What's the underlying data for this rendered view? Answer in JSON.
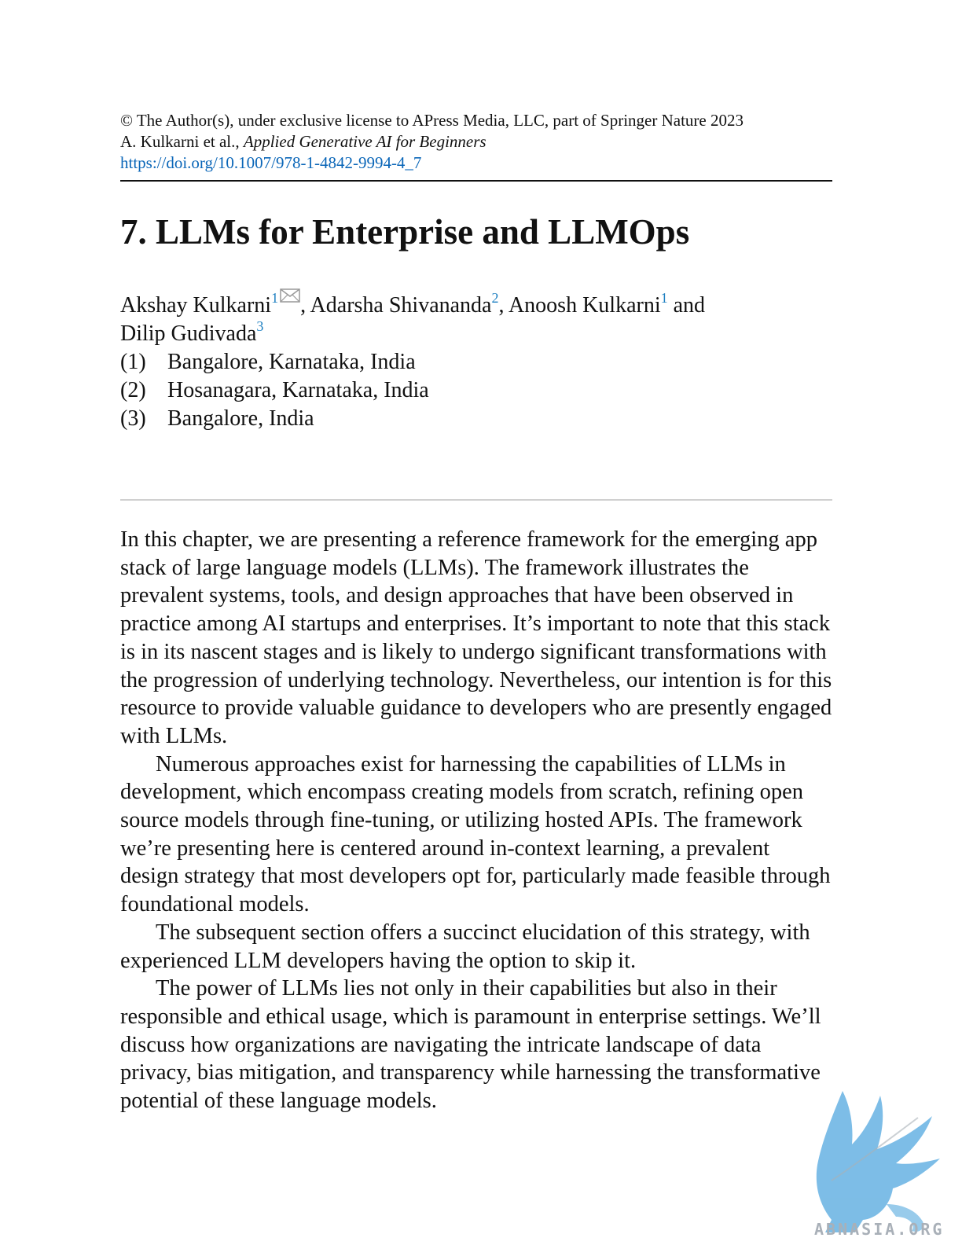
{
  "header": {
    "copyright": "© The Author(s), under exclusive license to APress Media, LLC, part of Springer Nature 2023",
    "authors_prefix": "A. Kulkarni et al., ",
    "book_title": "Applied Generative AI for Beginners",
    "doi": "https://doi.org/10.1007/978-1-4842-9994-4_7"
  },
  "chapter_title": "7. LLMs for Enterprise and LLMOps",
  "authors": [
    {
      "name": "Akshay Kulkarni",
      "sup": "1"
    },
    {
      "name": "Adarsha Shivananda",
      "sup": "2"
    },
    {
      "name": "Anoosh Kulkarni",
      "sup": "1"
    },
    {
      "name": "Dilip Gudivada",
      "sup": "3"
    }
  ],
  "author_sep_and": " and",
  "affiliations": [
    {
      "num": "(1)",
      "place": "Bangalore, Karnataka, India"
    },
    {
      "num": "(2)",
      "place": "Hosanagara, Karnataka, India"
    },
    {
      "num": "(3)",
      "place": "Bangalore, India"
    }
  ],
  "paragraphs": [
    "In this chapter, we are presenting a reference framework for the emerging app stack of large language models (LLMs). The framework illustrates the prevalent systems, tools, and design approaches that have been observed in practice among AI startups and enterprises. It’s important to note that this stack is in its nascent stages and is likely to undergo significant transformations with the progression of underlying technology. Nevertheless, our intention is for this resource to provide valuable guidance to developers who are presently engaged with LLMs.",
    "Numerous approaches exist for harnessing the capabilities of LLMs in development, which encompass creating models from scratch, refining open source models through fine-tuning, or utilizing hosted APIs. The framework we’re presenting here is centered around in-context learning, a prevalent design strategy that most developers opt for, particularly made feasible through foundational models.",
    "The subsequent section offers a succinct elucidation of this strategy, with experienced LLM developers having the option to skip it.",
    "The power of LLMs lies not only in their capabilities but also in their responsible and ethical usage, which is paramount in enterprise settings. We’ll discuss how organizations are navigating the intricate landscape of data privacy, bias mitigation, and transparency while harnessing the transformative potential of these language models."
  ],
  "watermark": {
    "text": "ABNASIA.ORG",
    "color": "#6fb6e4"
  },
  "colors": {
    "link": "#0a66b8",
    "superscript": "#1d7fc1"
  }
}
